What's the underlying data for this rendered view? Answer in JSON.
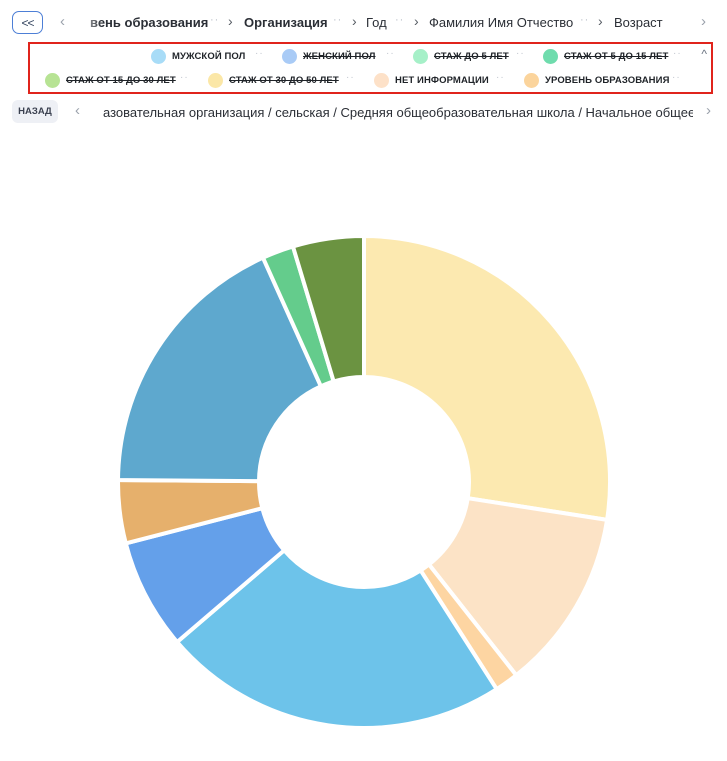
{
  "nav": {
    "collapse_label": "<<",
    "prev_arrow": "‹",
    "next_arrow": "›",
    "crumbs": [
      {
        "label": "вень образования",
        "bold": true
      },
      {
        "label": "Организация",
        "bold": true
      },
      {
        "label": "Год",
        "bold": false
      },
      {
        "label": "Фамилия Имя Отчество",
        "bold": false
      },
      {
        "label": "Возраст",
        "bold": false
      }
    ],
    "separator": "··",
    "chevron": "›"
  },
  "legend": {
    "toggle": "^",
    "items": [
      {
        "label": "МУЖСКОЙ ПОЛ",
        "color": "#a8dcf7",
        "active": true
      },
      {
        "label": "ЖЕНСКИЙ ПОЛ",
        "color": "#a9cbf6",
        "active": false
      },
      {
        "label": "СТАЖ ДО 5 ЛЕТ",
        "color": "#a6f0c8",
        "active": false
      },
      {
        "label": "СТАЖ ОТ 5 ДО 15 ЛЕТ",
        "color": "#6fdcad",
        "active": false
      },
      {
        "label": "СТАЖ ОТ 15 ДО 30 ЛЕТ",
        "color": "#b7e394",
        "active": false
      },
      {
        "label": "СТАЖ ОТ 30 ДО 50 ЛЕТ",
        "color": "#fbe7a7",
        "active": false
      },
      {
        "label": "НЕТ ИНФОРМАЦИИ",
        "color": "#fde1c8",
        "active": true
      },
      {
        "label": "УРОВЕНЬ ОБРАЗОВАНИЯ",
        "color": "#fbd49c",
        "active": true
      }
    ],
    "separator": "··"
  },
  "pathbar": {
    "back_label": "НАЗАД",
    "prev_arrow": "‹",
    "next_arrow": "›",
    "path": "азовательная организация / сельская / Средняя общеобразовательная школа / Начальное общее"
  },
  "chart_data": {
    "type": "pie",
    "donut": true,
    "title": "",
    "slices": [
      {
        "value": 26.5,
        "color": "#fce9b0"
      },
      {
        "value": 11.5,
        "color": "#fce3c6"
      },
      {
        "value": 1.5,
        "color": "#fdd5a2"
      },
      {
        "value": 22,
        "color": "#6dc3ea"
      },
      {
        "value": 7,
        "color": "#64a0ea"
      },
      {
        "value": 4,
        "color": "#e6b06c"
      },
      {
        "value": 17.5,
        "color": "#5ea8ce"
      },
      {
        "value": 2,
        "color": "#64cc8c"
      },
      {
        "value": 4.5,
        "color": "#6b9341"
      }
    ]
  }
}
